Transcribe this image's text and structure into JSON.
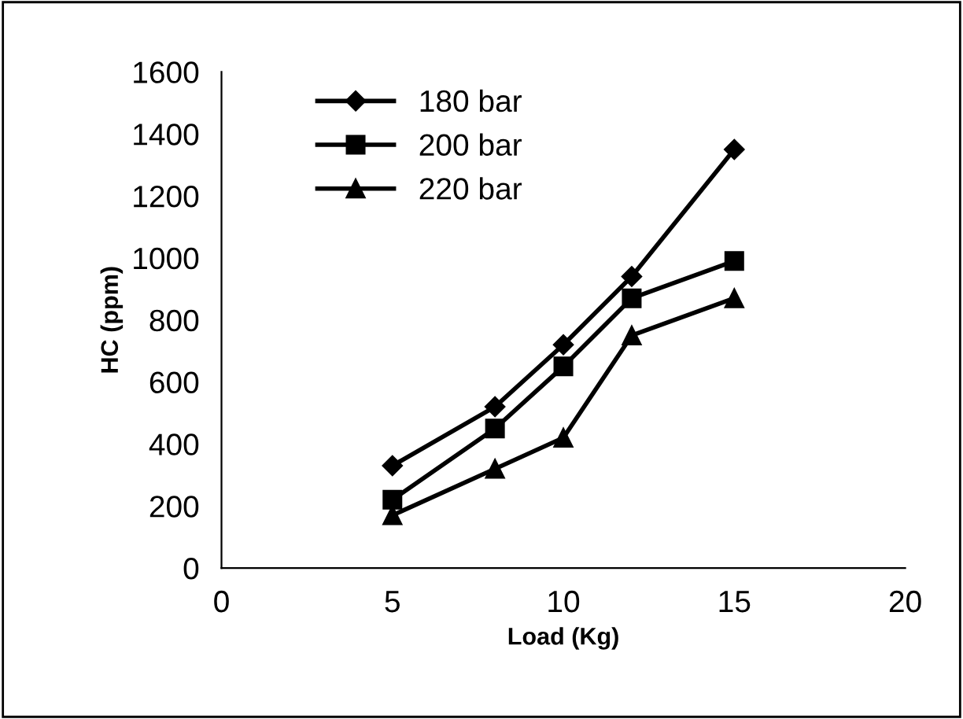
{
  "chart_data": {
    "type": "line",
    "xlabel": "Load (Kg)",
    "ylabel": "HC (ppm)",
    "x": [
      5,
      8,
      10,
      12,
      15
    ],
    "series": [
      {
        "name": "180 bar",
        "color": "#000000",
        "marker": "diamond",
        "values": [
          330,
          520,
          720,
          940,
          1350
        ]
      },
      {
        "name": "200 bar",
        "color": "#000000",
        "marker": "square",
        "values": [
          220,
          450,
          650,
          870,
          990
        ]
      },
      {
        "name": "220 bar",
        "color": "#000000",
        "marker": "triangle",
        "values": [
          170,
          320,
          420,
          750,
          870
        ]
      }
    ],
    "xlim": [
      0,
      20
    ],
    "xticks": [
      0,
      5,
      10,
      15,
      20
    ],
    "ylim": [
      0,
      1600
    ],
    "yticks": [
      0,
      200,
      400,
      600,
      800,
      1000,
      1200,
      1400,
      1600
    ],
    "grid": false,
    "legend": "top left",
    "line_style": "solid"
  }
}
